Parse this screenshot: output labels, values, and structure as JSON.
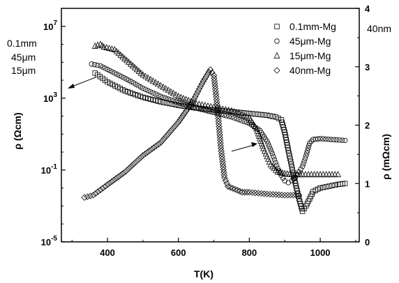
{
  "chart_data": {
    "type": "scatter",
    "title": "",
    "xlabel": "T(K)",
    "ylabel_left": "ρ (Ωcm)",
    "ylabel_right": "ρ (mΩcm)",
    "xlim": [
      270,
      1110
    ],
    "ylim_left_log10": [
      -5,
      8
    ],
    "ylim_right": [
      0,
      4
    ],
    "x_ticks": [
      400,
      600,
      800,
      1000
    ],
    "y_left_ticks": [
      {
        "exp": -5,
        "base": "10",
        "power": "-5"
      },
      {
        "exp": -1,
        "base": "10",
        "power": "-1"
      },
      {
        "exp": 3,
        "base": "10",
        "power": "3"
      },
      {
        "exp": 7,
        "base": "10",
        "power": "7"
      }
    ],
    "y_right_ticks": [
      "0",
      "1",
      "2",
      "3",
      "4"
    ],
    "grid": false,
    "legend_position": "top-right",
    "annotations": {
      "left_group": [
        "0.1mm",
        "45μm",
        "15μm"
      ],
      "right_group": "40nm"
    },
    "series": [
      {
        "name": "0.1mm-Mg",
        "marker": "square",
        "axis": "left",
        "x": [
          365,
          400,
          450,
          500,
          550,
          600,
          650,
          700,
          750,
          800,
          850,
          875,
          890,
          900,
          910,
          925,
          940,
          950,
          960,
          980,
          1000,
          1050,
          1070
        ],
        "y": [
          4.4,
          3.9,
          3.4,
          3.05,
          2.8,
          2.6,
          2.45,
          2.35,
          2.25,
          2.15,
          2.05,
          1.95,
          1.8,
          1.1,
          0.1,
          -1.3,
          -2.6,
          -3.3,
          -3.0,
          -2.2,
          -2.0,
          -1.8,
          -1.75
        ]
      },
      {
        "name": "45μm-Mg",
        "marker": "circle",
        "axis": "left",
        "x": [
          355,
          380,
          420,
          460,
          500,
          550,
          600,
          650,
          700,
          750,
          800,
          830,
          850,
          865,
          880,
          890,
          900,
          910,
          920,
          930,
          940,
          950,
          960,
          970,
          980,
          1000,
          1030,
          1070
        ],
        "y": [
          4.9,
          4.8,
          4.4,
          4.0,
          3.55,
          3.1,
          2.75,
          2.45,
          2.2,
          1.95,
          1.6,
          1.2,
          0.6,
          -0.1,
          -0.9,
          -1.3,
          -1.6,
          -1.7,
          -1.6,
          -1.4,
          -1.1,
          -0.8,
          -0.2,
          0.5,
          0.7,
          0.75,
          0.7,
          0.65
        ]
      },
      {
        "name": "15μm-Mg",
        "marker": "triangle",
        "axis": "left",
        "x": [
          365,
          380,
          390,
          420,
          460,
          500,
          550,
          600,
          650,
          700,
          750,
          800,
          820,
          840,
          860,
          880,
          900,
          920,
          950,
          1000,
          1050
        ],
        "y": [
          5.9,
          6.0,
          5.85,
          5.7,
          5.0,
          4.3,
          3.7,
          3.1,
          2.7,
          2.5,
          2.3,
          1.9,
          1.3,
          0.2,
          -0.7,
          -1.1,
          -1.2,
          -1.25,
          -1.25,
          -1.25,
          -1.25
        ]
      },
      {
        "name": "40nm-Mg",
        "marker": "diamond",
        "axis": "right",
        "x": [
          335,
          360,
          400,
          450,
          500,
          550,
          600,
          640,
          670,
          690,
          700,
          710,
          720,
          730,
          740,
          760,
          780,
          800,
          850,
          900,
          940
        ],
        "y": [
          0.76,
          0.8,
          0.98,
          1.2,
          1.48,
          1.7,
          2.05,
          2.4,
          2.75,
          2.95,
          2.85,
          2.3,
          1.6,
          1.1,
          0.95,
          0.9,
          0.85,
          0.85,
          0.82,
          0.8,
          0.8
        ]
      }
    ]
  }
}
